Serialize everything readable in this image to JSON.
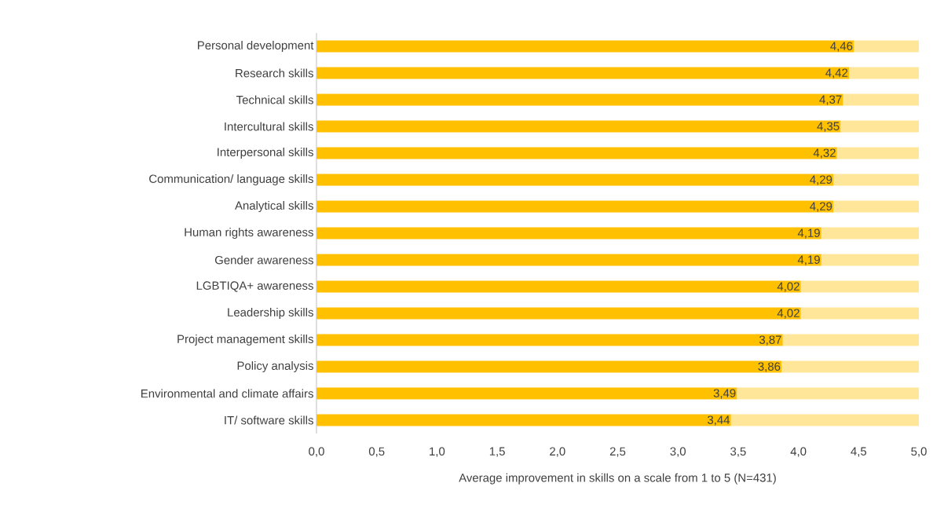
{
  "chart_data": {
    "type": "bar",
    "orientation": "horizontal",
    "stacked": true,
    "grid": false,
    "xlabel": "Average improvement in skills on a scale from 1 to 5 (N=431)",
    "categories": [
      "Personal development",
      "Research skills",
      "Technical skills",
      "Intercultural skills",
      "Interpersonal skills",
      "Communication/ language skills",
      "Analytical skills",
      "Human rights awareness",
      "Gender awareness",
      "LGBTIQA+ awareness",
      "Leadership skills",
      "Project management skills",
      "Policy analysis",
      "Environmental and climate affairs",
      "IT/ software skills"
    ],
    "series": [
      {
        "color": "#ffc000",
        "values": [
          4.46,
          4.42,
          4.37,
          4.35,
          4.32,
          4.29,
          4.29,
          4.19,
          4.19,
          4.02,
          4.02,
          3.87,
          3.86,
          3.49,
          3.44
        ],
        "value_labels": [
          "4,46",
          "4,42",
          "4,37",
          "4,35",
          "4,32",
          "4,29",
          "4,29",
          "4,19",
          "4,19",
          "4,02",
          "4,02",
          "3,87",
          "3,86",
          "3,49",
          "3,44"
        ]
      },
      {
        "color": "#ffe699",
        "values": [
          0.54,
          0.58,
          0.63,
          0.65,
          0.68,
          0.71,
          0.71,
          0.81,
          0.81,
          0.98,
          0.98,
          1.13,
          1.14,
          1.51,
          1.56
        ]
      }
    ],
    "xlim": [
      0,
      5
    ],
    "xticks": [
      {
        "value": 0,
        "label": "0,0"
      },
      {
        "value": 0.5,
        "label": "0,5"
      },
      {
        "value": 1,
        "label": "1,0"
      },
      {
        "value": 1.5,
        "label": "1,5"
      },
      {
        "value": 2,
        "label": "2,0"
      },
      {
        "value": 2.5,
        "label": "2,5"
      },
      {
        "value": 3,
        "label": "3,0"
      },
      {
        "value": 3.5,
        "label": "3,5"
      },
      {
        "value": 4,
        "label": "4,0"
      },
      {
        "value": 4.5,
        "label": "4,5"
      },
      {
        "value": 5,
        "label": "5,0"
      }
    ]
  }
}
